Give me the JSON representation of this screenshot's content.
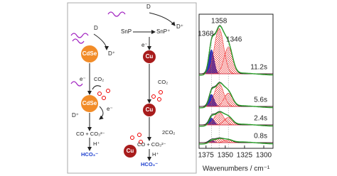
{
  "scheme_left": {
    "donor": "D",
    "donor_ox": "D⁺",
    "catalyst": "CdSe",
    "electron": "e⁻",
    "co2": "CO₂",
    "donor2_ox": "D⁺",
    "electron2": "e⁻",
    "catalyst2": "CdSe",
    "products": "CO + CO₃²⁻",
    "proton": "H⁺",
    "final": "HCO₃⁻"
  },
  "scheme_right": {
    "donor": "D",
    "sensitizer": "SnP",
    "sensitizer_ox": "SnP⁺",
    "donor_ox": "D⁺",
    "electron": "e⁻",
    "catalyst": "Cu",
    "co2": "CO₂",
    "catalyst2": "Cu",
    "catalyst3": "Cu",
    "two_co2": "2CO₂",
    "products": "CO + CO₃²⁻",
    "proton": "H⁺",
    "final": "HCO₃⁻"
  },
  "chart_data": {
    "type": "spectra",
    "xlabel": "Wavenumbers / cm⁻¹",
    "xlim": [
      1384,
      1288
    ],
    "xticks": [
      1375,
      1350,
      1325,
      1300
    ],
    "traces": [
      "11.2s",
      "5.6s",
      "2.4s",
      "0.8s"
    ],
    "peaks": [
      {
        "value": 1368,
        "label": "1368"
      },
      {
        "value": 1358,
        "label": "1358"
      },
      {
        "value": 1346,
        "label": "1346"
      }
    ]
  }
}
